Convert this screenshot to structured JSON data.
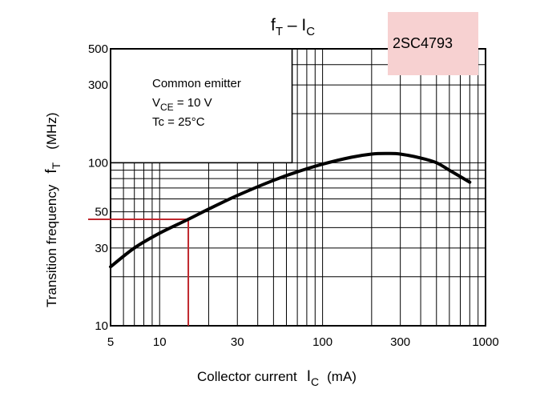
{
  "chart_data": {
    "type": "line",
    "title_main": "f",
    "title_main_sub": "T",
    "title_dash": " – I",
    "title_dash_sub": "C",
    "part_number": "2SC4793",
    "xlabel": "Collector current",
    "xlabel_symbol": "I",
    "xlabel_symbol_sub": "C",
    "xlabel_unit": "(mA)",
    "ylabel": "Transition frequency",
    "ylabel_symbol": "f",
    "ylabel_symbol_sub": "T",
    "ylabel_unit": "(MHz)",
    "x_scale": "log",
    "y_scale": "log",
    "xlim": [
      5,
      1000
    ],
    "ylim": [
      10,
      500
    ],
    "x_ticks": [
      5,
      10,
      30,
      100,
      300,
      1000
    ],
    "y_ticks": [
      10,
      30,
      50,
      100,
      300,
      500
    ],
    "annotation": {
      "line1": "Common emitter",
      "line2_prefix": "V",
      "line2_sub": "CE",
      "line2_suffix": " = 10 V",
      "line3": "Tc = 25°C"
    },
    "series": [
      {
        "x": [
          5,
          7,
          10,
          15,
          20,
          30,
          50,
          70,
          100,
          150,
          200,
          250,
          300,
          400,
          500,
          600,
          800
        ],
        "y": [
          23,
          30,
          37,
          45,
          52,
          63,
          78,
          88,
          98,
          108,
          113,
          114,
          113,
          107,
          100,
          90,
          76
        ]
      }
    ],
    "marker": {
      "x": 15,
      "y": 45
    },
    "colors": {
      "curve": "#000000",
      "marker": "#c0272d",
      "part_label_bg": "#f7d1d1"
    }
  }
}
